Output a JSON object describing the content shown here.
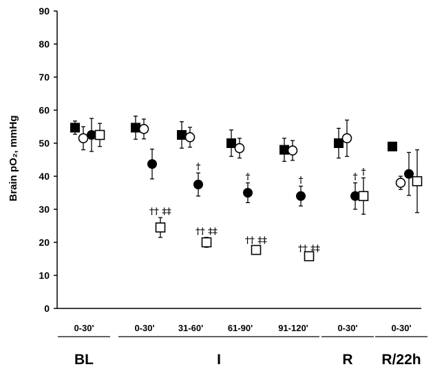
{
  "chart_data": {
    "type": "scatter",
    "ylabel": "Brain pO₂, mmHg",
    "ylim": [
      0,
      90
    ],
    "yticks": [
      0,
      10,
      20,
      30,
      40,
      50,
      60,
      70,
      80,
      90
    ],
    "categories": [
      "0-30'",
      "0-30'",
      "31-60'",
      "61-90'",
      "91-120'",
      "0-30'",
      "0-30'"
    ],
    "groups": [
      {
        "label": "BL",
        "from": 0,
        "to": 0
      },
      {
        "label": "I",
        "from": 1,
        "to": 4
      },
      {
        "label": "R",
        "from": 5,
        "to": 5
      },
      {
        "label": "R/22h",
        "from": 6,
        "to": 6
      }
    ],
    "series": [
      {
        "marker": "filled-square",
        "values": [
          54.7,
          54.7,
          52.5,
          50.0,
          48.0,
          50.0,
          49.0
        ],
        "err": [
          2.0,
          3.5,
          4.0,
          4.0,
          3.5,
          4.5,
          0
        ]
      },
      {
        "marker": "open-circle",
        "values": [
          51.5,
          54.3,
          51.8,
          48.5,
          47.8,
          51.5,
          38.0
        ],
        "err": [
          3.5,
          3.0,
          3.0,
          3.0,
          3.0,
          5.5,
          2.0
        ]
      },
      {
        "marker": "filled-circle",
        "values": [
          52.5,
          43.7,
          37.5,
          35.0,
          34.0,
          34.0,
          40.7
        ],
        "err": [
          5.0,
          4.5,
          3.5,
          3.0,
          3.0,
          4.0,
          6.5
        ]
      },
      {
        "marker": "open-square",
        "values": [
          52.5,
          24.5,
          20.0,
          17.7,
          15.8,
          34.0,
          38.5
        ],
        "err": [
          3.5,
          3.0,
          1.5,
          1.0,
          0.5,
          5.5,
          9.5
        ]
      }
    ],
    "annotations": [
      {
        "category": 1,
        "series": 3,
        "text": "†† ‡‡"
      },
      {
        "category": 2,
        "series": 2,
        "text": "†"
      },
      {
        "category": 2,
        "series": 3,
        "text": "†† ‡‡"
      },
      {
        "category": 3,
        "series": 2,
        "text": "†"
      },
      {
        "category": 3,
        "series": 3,
        "text": "†† ‡‡"
      },
      {
        "category": 4,
        "series": 2,
        "text": "†"
      },
      {
        "category": 4,
        "series": 3,
        "text": "†† ‡‡"
      },
      {
        "category": 5,
        "series": 2,
        "text": "†"
      },
      {
        "category": 5,
        "series": 3,
        "text": "†"
      }
    ],
    "legend": "none",
    "grid": false
  }
}
